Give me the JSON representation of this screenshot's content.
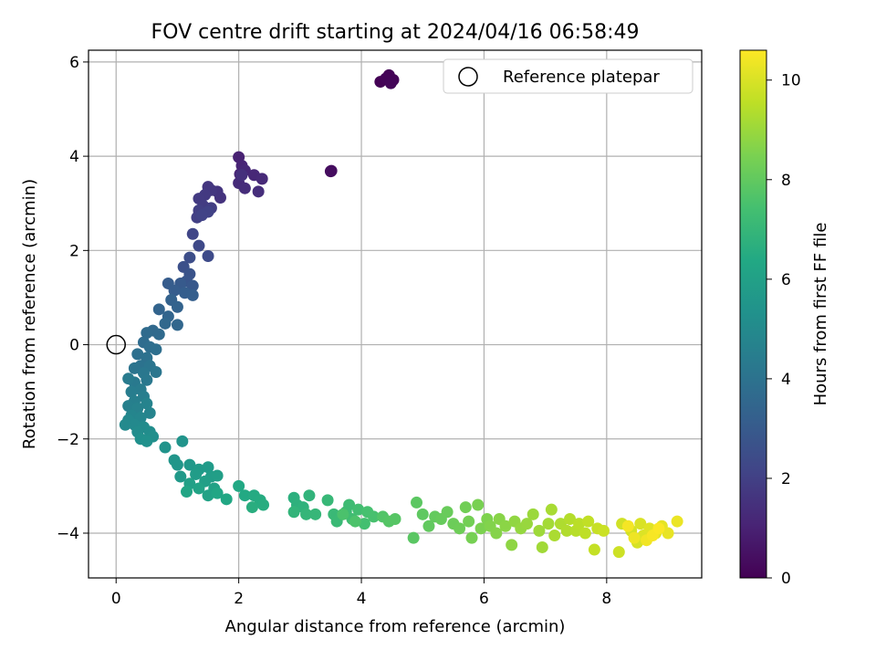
{
  "chart_data": {
    "type": "scatter",
    "title": "FOV centre drift starting at 2024/04/16 06:58:49",
    "xlabel": "Angular distance from reference (arcmin)",
    "ylabel": "Rotation from reference (arcmin)",
    "xlim": [
      -0.45,
      9.55
    ],
    "ylim": [
      -4.95,
      6.25
    ],
    "xticks": [
      0,
      2,
      4,
      6,
      8
    ],
    "yticks": [
      -4,
      -2,
      0,
      2,
      4,
      6
    ],
    "grid": true,
    "legend": {
      "location": "upper right",
      "entries": [
        "Reference platepar"
      ]
    },
    "reference_point": {
      "x": 0,
      "y": 0,
      "label": "Reference platepar"
    },
    "colorbar": {
      "label": "Hours from first FF file",
      "colormap": "viridis",
      "range": [
        0,
        10.6
      ],
      "ticks": [
        0,
        2,
        4,
        6,
        8,
        10
      ]
    },
    "points": [
      [
        4.31,
        5.58,
        0.02
      ],
      [
        4.45,
        5.72,
        0.05
      ],
      [
        4.52,
        5.62,
        0.08
      ],
      [
        4.4,
        5.65,
        0.1
      ],
      [
        4.48,
        5.55,
        0.12
      ],
      [
        3.5,
        3.68,
        0.3
      ],
      [
        3.51,
        3.69,
        0.35
      ],
      [
        2.0,
        3.98,
        1.0
      ],
      [
        2.05,
        3.8,
        1.05
      ],
      [
        2.02,
        3.62,
        1.1
      ],
      [
        2.1,
        3.7,
        1.15
      ],
      [
        2.25,
        3.6,
        1.2
      ],
      [
        2.38,
        3.52,
        1.25
      ],
      [
        2.0,
        3.43,
        1.3
      ],
      [
        2.1,
        3.32,
        1.35
      ],
      [
        2.32,
        3.25,
        1.4
      ],
      [
        2.05,
        3.6,
        1.45
      ],
      [
        1.7,
        3.12,
        1.55
      ],
      [
        1.65,
        3.25,
        1.6
      ],
      [
        1.5,
        3.35,
        1.65
      ],
      [
        1.55,
        3.28,
        1.7
      ],
      [
        1.45,
        3.18,
        1.75
      ],
      [
        1.35,
        3.1,
        1.8
      ],
      [
        1.42,
        2.95,
        1.85
      ],
      [
        1.55,
        2.9,
        1.9
      ],
      [
        1.35,
        2.85,
        1.95
      ],
      [
        1.32,
        2.7,
        2.0
      ],
      [
        1.5,
        2.82,
        2.05
      ],
      [
        1.4,
        2.75,
        2.1
      ],
      [
        1.25,
        2.35,
        2.2
      ],
      [
        1.35,
        2.1,
        2.3
      ],
      [
        1.5,
        1.88,
        2.4
      ],
      [
        1.2,
        1.85,
        2.5
      ],
      [
        1.1,
        1.65,
        2.6
      ],
      [
        1.2,
        1.5,
        2.7
      ],
      [
        1.15,
        1.35,
        2.8
      ],
      [
        1.25,
        1.25,
        2.9
      ],
      [
        1.05,
        1.3,
        3.0
      ],
      [
        0.85,
        1.3,
        3.05
      ],
      [
        0.95,
        1.15,
        3.1
      ],
      [
        1.12,
        1.1,
        3.15
      ],
      [
        1.25,
        1.05,
        3.2
      ],
      [
        0.9,
        0.95,
        3.3
      ],
      [
        1.0,
        0.8,
        3.35
      ],
      [
        0.7,
        0.75,
        3.4
      ],
      [
        0.85,
        0.6,
        3.45
      ],
      [
        1.0,
        0.42,
        3.5
      ],
      [
        0.8,
        0.45,
        3.55
      ],
      [
        0.6,
        0.3,
        3.6
      ],
      [
        0.7,
        0.22,
        3.65
      ],
      [
        0.5,
        0.25,
        3.7
      ],
      [
        0.45,
        0.05,
        3.75
      ],
      [
        0.55,
        -0.05,
        3.8
      ],
      [
        0.65,
        -0.1,
        3.85
      ],
      [
        0.35,
        -0.2,
        3.9
      ],
      [
        0.5,
        -0.28,
        3.95
      ],
      [
        0.4,
        -0.45,
        4.0
      ],
      [
        0.3,
        -0.5,
        4.05
      ],
      [
        0.55,
        -0.45,
        4.1
      ],
      [
        0.65,
        -0.58,
        4.15
      ],
      [
        0.45,
        -0.6,
        4.2
      ],
      [
        0.5,
        -0.75,
        4.25
      ],
      [
        0.3,
        -0.8,
        4.3
      ],
      [
        0.2,
        -0.72,
        4.35
      ],
      [
        0.4,
        -0.95,
        4.4
      ],
      [
        0.25,
        -1.0,
        4.45
      ],
      [
        0.45,
        -1.1,
        4.5
      ],
      [
        0.3,
        -1.2,
        4.55
      ],
      [
        0.2,
        -1.3,
        4.6
      ],
      [
        0.35,
        -1.35,
        4.65
      ],
      [
        0.5,
        -1.25,
        4.7
      ],
      [
        0.55,
        -1.45,
        4.75
      ],
      [
        0.25,
        -1.5,
        4.8
      ],
      [
        0.4,
        -1.55,
        4.85
      ],
      [
        0.2,
        -1.6,
        4.9
      ],
      [
        0.3,
        -1.7,
        4.95
      ],
      [
        0.15,
        -1.7,
        5.0
      ],
      [
        0.45,
        -1.75,
        5.05
      ],
      [
        0.35,
        -1.85,
        5.1
      ],
      [
        0.55,
        -1.85,
        5.15
      ],
      [
        0.6,
        -1.95,
        5.2
      ],
      [
        0.4,
        -2.0,
        5.25
      ],
      [
        0.5,
        -2.05,
        5.3
      ],
      [
        0.8,
        -2.18,
        5.4
      ],
      [
        1.08,
        -2.05,
        5.45
      ],
      [
        0.95,
        -2.45,
        5.5
      ],
      [
        1.0,
        -2.55,
        5.55
      ],
      [
        1.2,
        -2.55,
        5.6
      ],
      [
        1.05,
        -2.8,
        5.65
      ],
      [
        1.35,
        -2.65,
        5.7
      ],
      [
        1.5,
        -2.6,
        5.75
      ],
      [
        1.3,
        -2.75,
        5.8
      ],
      [
        1.55,
        -2.8,
        5.85
      ],
      [
        1.65,
        -2.78,
        5.9
      ],
      [
        1.45,
        -2.9,
        5.95
      ],
      [
        1.2,
        -2.95,
        6.0
      ],
      [
        1.6,
        -3.05,
        6.05
      ],
      [
        1.5,
        -3.2,
        6.1
      ],
      [
        1.35,
        -3.05,
        6.15
      ],
      [
        1.15,
        -3.12,
        6.2
      ],
      [
        1.65,
        -3.15,
        6.25
      ],
      [
        1.8,
        -3.28,
        6.3
      ],
      [
        2.0,
        -3.0,
        6.35
      ],
      [
        2.1,
        -3.2,
        6.4
      ],
      [
        2.25,
        -3.2,
        6.45
      ],
      [
        2.35,
        -3.3,
        6.5
      ],
      [
        2.4,
        -3.4,
        6.55
      ],
      [
        2.22,
        -3.45,
        6.6
      ],
      [
        2.9,
        -3.25,
        6.7
      ],
      [
        2.95,
        -3.4,
        6.75
      ],
      [
        3.05,
        -3.45,
        6.8
      ],
      [
        3.15,
        -3.2,
        6.85
      ],
      [
        2.9,
        -3.55,
        6.9
      ],
      [
        3.1,
        -3.6,
        6.95
      ],
      [
        3.25,
        -3.6,
        7.0
      ],
      [
        3.45,
        -3.3,
        7.05
      ],
      [
        3.55,
        -3.6,
        7.1
      ],
      [
        3.6,
        -3.75,
        7.15
      ],
      [
        3.75,
        -3.55,
        7.2
      ],
      [
        3.8,
        -3.4,
        7.25
      ],
      [
        3.85,
        -3.7,
        7.3
      ],
      [
        3.95,
        -3.5,
        7.35
      ],
      [
        4.05,
        -3.8,
        7.4
      ],
      [
        4.1,
        -3.55,
        7.45
      ],
      [
        4.2,
        -3.65,
        7.5
      ],
      [
        3.7,
        -3.6,
        7.55
      ],
      [
        3.9,
        -3.75,
        7.6
      ],
      [
        4.35,
        -3.65,
        7.7
      ],
      [
        4.45,
        -3.75,
        7.75
      ],
      [
        4.55,
        -3.7,
        7.8
      ],
      [
        4.85,
        -4.1,
        7.85
      ],
      [
        4.9,
        -3.35,
        7.9
      ],
      [
        5.0,
        -3.6,
        7.95
      ],
      [
        5.1,
        -3.85,
        8.0
      ],
      [
        5.2,
        -3.65,
        8.05
      ],
      [
        5.3,
        -3.7,
        8.1
      ],
      [
        5.4,
        -3.55,
        8.15
      ],
      [
        5.5,
        -3.8,
        8.2
      ],
      [
        5.6,
        -3.9,
        8.25
      ],
      [
        5.7,
        -3.45,
        8.3
      ],
      [
        5.75,
        -3.75,
        8.35
      ],
      [
        5.8,
        -4.1,
        8.4
      ],
      [
        5.9,
        -3.4,
        8.45
      ],
      [
        5.95,
        -3.9,
        8.5
      ],
      [
        6.05,
        -3.7,
        8.55
      ],
      [
        6.1,
        -3.85,
        8.6
      ],
      [
        6.2,
        -4.0,
        8.65
      ],
      [
        6.25,
        -3.7,
        8.7
      ],
      [
        6.35,
        -3.85,
        8.75
      ],
      [
        6.45,
        -4.25,
        8.8
      ],
      [
        6.5,
        -3.75,
        8.85
      ],
      [
        6.6,
        -3.9,
        8.9
      ],
      [
        6.7,
        -3.8,
        8.95
      ],
      [
        6.8,
        -3.6,
        9.0
      ],
      [
        6.9,
        -3.95,
        9.05
      ],
      [
        6.95,
        -4.3,
        9.1
      ],
      [
        7.05,
        -3.8,
        9.15
      ],
      [
        7.1,
        -3.5,
        9.2
      ],
      [
        7.15,
        -4.05,
        9.25
      ],
      [
        7.25,
        -3.8,
        9.3
      ],
      [
        7.35,
        -3.95,
        9.35
      ],
      [
        7.4,
        -3.7,
        9.4
      ],
      [
        7.5,
        -3.95,
        9.45
      ],
      [
        7.55,
        -3.8,
        9.5
      ],
      [
        7.65,
        -4.0,
        9.55
      ],
      [
        7.7,
        -3.75,
        9.6
      ],
      [
        7.8,
        -4.35,
        9.65
      ],
      [
        7.85,
        -3.9,
        9.7
      ],
      [
        7.95,
        -3.95,
        9.75
      ],
      [
        8.2,
        -4.4,
        9.8
      ],
      [
        8.25,
        -3.8,
        9.85
      ],
      [
        8.4,
        -3.95,
        9.9
      ],
      [
        8.5,
        -4.2,
        9.95
      ],
      [
        8.55,
        -3.8,
        10.0
      ],
      [
        8.6,
        -4.05,
        10.05
      ],
      [
        8.7,
        -3.9,
        10.1
      ],
      [
        8.8,
        -4.0,
        10.15
      ],
      [
        8.9,
        -3.85,
        10.2
      ],
      [
        9.0,
        -4.0,
        10.25
      ],
      [
        9.15,
        -3.75,
        10.3
      ],
      [
        8.45,
        -4.1,
        10.35
      ],
      [
        8.65,
        -4.15,
        10.4
      ],
      [
        8.35,
        -3.85,
        10.45
      ],
      [
        8.75,
        -4.05,
        10.5
      ],
      [
        8.85,
        -3.9,
        10.55
      ]
    ]
  }
}
